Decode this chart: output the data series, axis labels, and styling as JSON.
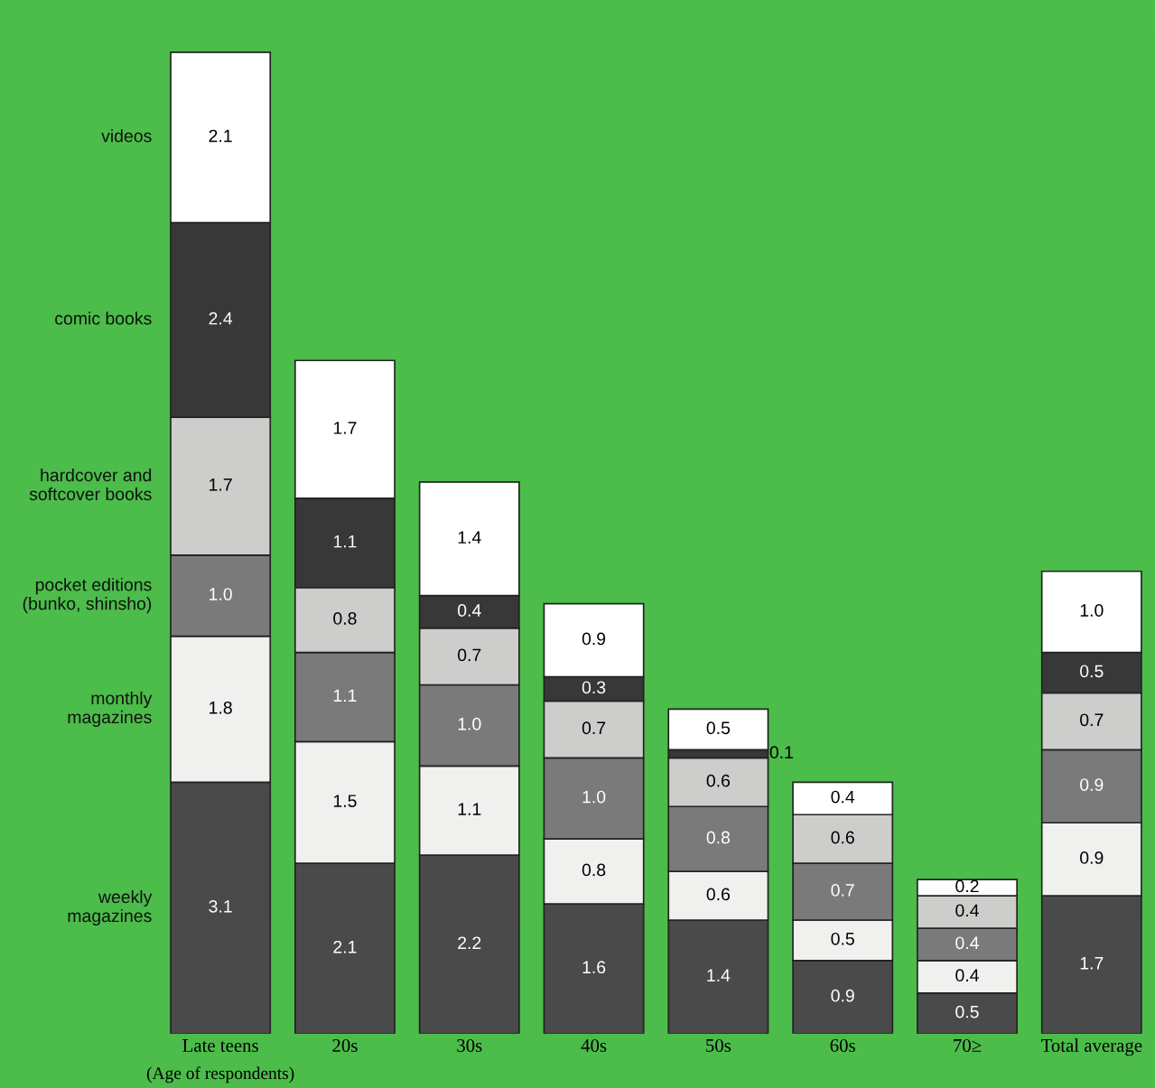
{
  "chart_data": {
    "type": "bar",
    "stacked": true,
    "legend": false,
    "grid": false,
    "tick_labels": "x",
    "xlabel": "(Age of respondents)",
    "categories": [
      "Late teens",
      "20s",
      "30s",
      "40s",
      "50s",
      "60s",
      "70≥",
      "Total average"
    ],
    "series": [
      {
        "name": "weekly\nmagazines",
        "color": "#4a4a4a",
        "values": [
          3.1,
          2.1,
          2.2,
          1.6,
          1.4,
          0.9,
          0.5,
          1.7
        ],
        "value_labels": [
          "3.1",
          "2.1",
          "2.2",
          "1.6",
          "1.4",
          "0.9",
          "0.5",
          "1.7"
        ]
      },
      {
        "name": "monthly\nmagazines",
        "color": "#f0f0ee",
        "values": [
          1.8,
          1.5,
          1.1,
          0.8,
          0.6,
          0.5,
          0.4,
          0.9
        ],
        "value_labels": [
          "1.8",
          "1.5",
          "1.1",
          "0.8",
          "0.6",
          "0.5",
          "0.4",
          "0.9"
        ]
      },
      {
        "name": "pocket editions\n(bunko, shinsho)",
        "color": "#7a7a7a",
        "values": [
          1.0,
          1.1,
          1.0,
          1.0,
          0.8,
          0.7,
          0.4,
          0.9
        ],
        "value_labels": [
          "1.0",
          "1.1",
          "1.0",
          "1.0",
          "0.8",
          "0.7",
          "0.4",
          "0.9"
        ]
      },
      {
        "name": "hardcover and\nsoftcover books",
        "color": "#cdcdcb",
        "values": [
          1.7,
          0.8,
          0.7,
          0.7,
          0.6,
          0.6,
          0.4,
          0.7
        ],
        "value_labels": [
          "1.7",
          "0.8",
          "0.7",
          "0.7",
          "0.6",
          "0.6",
          "0.4",
          "0.7"
        ]
      },
      {
        "name": "comic books",
        "color": "#383838",
        "values": [
          2.4,
          1.1,
          0.4,
          0.3,
          0.1,
          null,
          null,
          0.5
        ],
        "value_labels": [
          "2.4",
          "1.1",
          "0.4",
          "0.3",
          "0.1",
          null,
          null,
          "0.5"
        ]
      },
      {
        "name": "videos",
        "color": "#ffffff",
        "values": [
          2.1,
          1.7,
          1.4,
          0.9,
          0.5,
          0.4,
          0.2,
          1.0
        ],
        "value_labels": [
          "2.1",
          "1.7",
          "1.4",
          "0.9",
          "0.5",
          "0.4",
          "0.2",
          "1.0"
        ]
      }
    ]
  }
}
